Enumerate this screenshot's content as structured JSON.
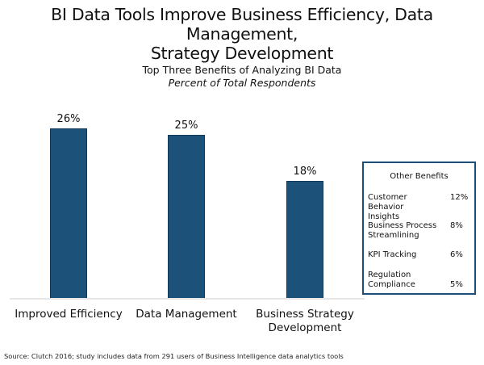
{
  "header": {
    "title_line1": "BI Data Tools Improve Business Efficiency, Data Management,",
    "title_line2": "Strategy Development"
  },
  "chart_data": {
    "type": "bar",
    "title": "Top Three Benefits of Analyzing BI Data",
    "subtitle": "Percent of Total Respondents",
    "categories": [
      "Improved Efficiency",
      "Data Management",
      "Business Strategy Development"
    ],
    "values": [
      26,
      25,
      18
    ],
    "value_labels": [
      "26%",
      "25%",
      "18%"
    ],
    "xlabel": "",
    "ylabel": "Percent of Total Respondents",
    "ylim": [
      0,
      30
    ],
    "grid": false,
    "bar_color": "#1c5279",
    "side_table": {
      "title": "Other Benefits",
      "items": [
        {
          "name": "Customer Behavior Insights",
          "value": 12,
          "label": "12%"
        },
        {
          "name": "Business Process Streamlining",
          "value": 8,
          "label": "8%"
        },
        {
          "name": "KPI Tracking",
          "value": 6,
          "label": "6%"
        },
        {
          "name": "Regulation Compliance",
          "value": 5,
          "label": "5%"
        }
      ]
    }
  },
  "labels": {
    "cat0": "Improved Efficiency",
    "cat1": "Data Management",
    "cat2_line1": "Business Strategy",
    "cat2_line2": "Development",
    "legend": {
      "title": "Other Benefits",
      "item0_line1": "Customer Behavior",
      "item0_line2": "Insights",
      "item0_value": "12%",
      "item1_line1": "Business Process",
      "item1_line2": "Streamlining",
      "item1_value": "8%",
      "item2_line1": "KPI Tracking",
      "item2_value": "6%",
      "item3_line1": "Regulation",
      "item3_line2": "Compliance",
      "item3_value": "5%"
    }
  },
  "footer": {
    "source": "Source: Clutch 2016; study includes data from 291 users of Business Intelligence data analytics tools"
  }
}
